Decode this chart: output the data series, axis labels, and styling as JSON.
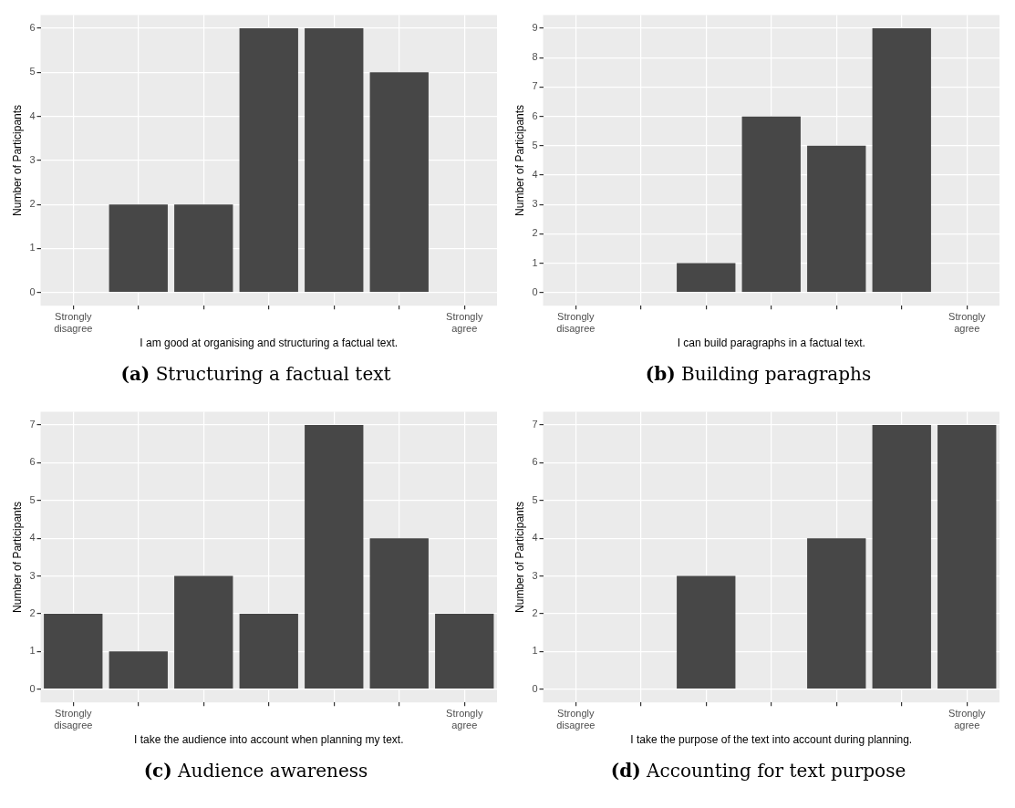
{
  "chart_data": [
    {
      "type": "bar",
      "title": "(a) Structuring a factual text",
      "xlabel": "I am good at organising and structuring a factual text.",
      "ylabel": "Number of Participants",
      "categories": [
        "Strongly disagree",
        null,
        null,
        null,
        null,
        null,
        "Strongly agree"
      ],
      "values": [
        0,
        2,
        2,
        6,
        6,
        5,
        0
      ],
      "color": "#474747",
      "ylim": [
        -0.3,
        6.3
      ],
      "yticks": [
        0,
        1,
        2,
        3,
        4,
        5,
        6
      ],
      "grid": true
    },
    {
      "type": "bar",
      "title": "(b) Building paragraphs",
      "xlabel": "I can build paragraphs in a factual text.",
      "ylabel": "Number of Participants",
      "categories": [
        "Strongly disagree",
        null,
        null,
        null,
        null,
        null,
        "Strongly agree"
      ],
      "values": [
        0,
        0,
        1,
        6,
        5,
        9,
        0
      ],
      "color": "#474747",
      "ylim": [
        -0.45,
        9.45
      ],
      "yticks": [
        0,
        1,
        2,
        3,
        4,
        5,
        6,
        7,
        8,
        9
      ],
      "grid": true
    },
    {
      "type": "bar",
      "title": "(c) Audience awareness",
      "xlabel": "I take the audience into account when planning my text.",
      "ylabel": "Number of Participants",
      "categories": [
        "Strongly disagree",
        null,
        null,
        null,
        null,
        null,
        "Strongly agree"
      ],
      "values": [
        2,
        1,
        3,
        2,
        7,
        4,
        2
      ],
      "color": "#474747",
      "ylim": [
        -0.35,
        7.35
      ],
      "yticks": [
        0,
        1,
        2,
        3,
        4,
        5,
        6,
        7
      ],
      "grid": true
    },
    {
      "type": "bar",
      "title": "(d) Accounting for text purpose",
      "xlabel": "I take the purpose of the text into account during planning.",
      "ylabel": "Number of Participants",
      "categories": [
        "Strongly disagree",
        null,
        null,
        null,
        null,
        null,
        "Strongly agree"
      ],
      "values": [
        0,
        0,
        3,
        0,
        4,
        7,
        7
      ],
      "color": "#474747",
      "ylim": [
        -0.35,
        7.35
      ],
      "yticks": [
        0,
        1,
        2,
        3,
        4,
        5,
        6,
        7
      ],
      "grid": true
    }
  ]
}
